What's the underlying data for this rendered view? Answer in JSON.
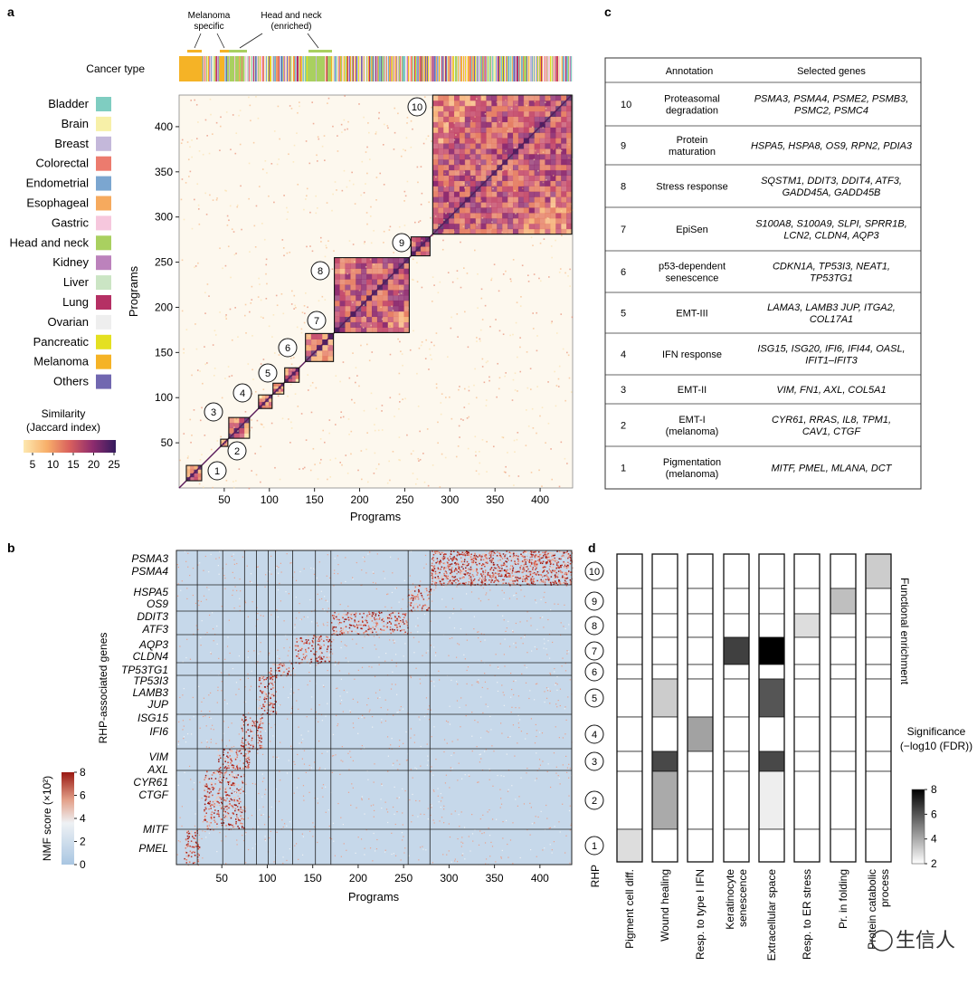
{
  "panel_letters": {
    "a": "a",
    "b": "b",
    "c": "c",
    "d": "d"
  },
  "panel_a": {
    "cancer_type_label": "Cancer type",
    "top_annotations": [
      "Melanoma\nspecific",
      "Head and neck\n(enriched)"
    ],
    "legend_items": [
      {
        "label": "Bladder",
        "color": "#7fcdc1"
      },
      {
        "label": "Brain",
        "color": "#f7f0a8"
      },
      {
        "label": "Breast",
        "color": "#c4b8da"
      },
      {
        "label": "Colorectal",
        "color": "#ec7b6e"
      },
      {
        "label": "Endometrial",
        "color": "#7ba6d0"
      },
      {
        "label": "Esophageal",
        "color": "#f6aa5e"
      },
      {
        "label": "Gastric",
        "color": "#f6c7dd"
      },
      {
        "label": "Head and neck",
        "color": "#a9d060"
      },
      {
        "label": "Kidney",
        "color": "#bc82bc"
      },
      {
        "label": "Liver",
        "color": "#cbe5c4"
      },
      {
        "label": "Lung",
        "color": "#b53064"
      },
      {
        "label": "Ovarian",
        "color": "#eeeeee"
      },
      {
        "label": "Pancreatic",
        "color": "#e4e021"
      },
      {
        "label": "Melanoma",
        "color": "#f5b326"
      },
      {
        "label": "Others",
        "color": "#7167b0"
      }
    ],
    "colorbar_title": "Similarity\n(Jaccard index)",
    "colorbar_ticks": [
      "5",
      "10",
      "15",
      "20",
      "25"
    ],
    "xlabel": "Programs",
    "ylabel": "Programs",
    "x_ticks": [
      "50",
      "100",
      "150",
      "200",
      "250",
      "300",
      "350",
      "400"
    ],
    "y_ticks": [
      "50",
      "100",
      "150",
      "200",
      "250",
      "300",
      "350",
      "400"
    ],
    "rhp_labels": [
      "1",
      "2",
      "3",
      "4",
      "5",
      "6",
      "7",
      "8",
      "9",
      "10"
    ]
  },
  "panel_b": {
    "ylabel": "RHP-associated genes",
    "xlabel": "Programs",
    "x_ticks": [
      "50",
      "100",
      "150",
      "200",
      "250",
      "300",
      "350",
      "400"
    ],
    "gene_labels": [
      "PSMA3",
      "PSMA4",
      "HSPA5",
      "OS9",
      "DDIT3",
      "ATF3",
      "AQP3",
      "CLDN4",
      "TP53TG1",
      "TP53I3",
      "LAMB3",
      "JUP",
      "ISG15",
      "IFI6",
      "VIM",
      "AXL",
      "CYR61",
      "CTGF",
      "MITF",
      "PMEL"
    ],
    "colorbar_title": "NMF score (×10²)",
    "colorbar_ticks": [
      "0",
      "2",
      "4",
      "6",
      "8"
    ]
  },
  "panel_c": {
    "header_annotation": "Annotation",
    "header_genes": "Selected genes",
    "rows": [
      {
        "rhp": "10",
        "annotation": "Proteasomal\ndegradation",
        "genes": "PSMA3, PSMA4, PSME2, PSMB3,\nPSMC2, PSMC4"
      },
      {
        "rhp": "9",
        "annotation": "Protein\nmaturation",
        "genes": "HSPA5, HSPA8, OS9, RPN2, PDIA3"
      },
      {
        "rhp": "8",
        "annotation": "Stress response",
        "genes": "SQSTM1, DDIT3, DDIT4, ATF3,\nGADD45A, GADD45B"
      },
      {
        "rhp": "7",
        "annotation": "EpiSen",
        "genes": "S100A8, S100A9, SLPI, SPRR1B,\nLCN2, CLDN4, AQP3"
      },
      {
        "rhp": "6",
        "annotation": "p53-dependent\nsenescence",
        "genes": "CDKN1A, TP53I3, NEAT1,\nTP53TG1"
      },
      {
        "rhp": "5",
        "annotation": "EMT-III",
        "genes": "LAMA3, LAMB3 JUP, ITGA2,\nCOL17A1"
      },
      {
        "rhp": "4",
        "annotation": "IFN response",
        "genes": "ISG15, ISG20, IFI6, IFI44, OASL,\nIFIT1–IFIT3"
      },
      {
        "rhp": "3",
        "annotation": "EMT-II",
        "genes": "VIM, FN1, AXL, COL5A1"
      },
      {
        "rhp": "2",
        "annotation": "EMT-I\n(melanoma)",
        "genes": "CYR61, RRAS, IL8, TPM1,\nCAV1, CTGF"
      },
      {
        "rhp": "1",
        "annotation": "Pigmentation\n(melanoma)",
        "genes": "MITF, PMEL, MLANA, DCT"
      }
    ]
  },
  "panel_d": {
    "rhp_axis_label": "RHP",
    "rhp_labels": [
      "10",
      "9",
      "8",
      "7",
      "6",
      "5",
      "4",
      "3",
      "2",
      "1"
    ],
    "columns": [
      "Pigment cell diff.",
      "Wound healing",
      "Resp. to type I IFN",
      "Keratinocyte\nsenescence",
      "Extracellular space",
      "Resp. to ER stress",
      "Pr. in folding",
      "Protein catabolic\nprocess"
    ],
    "side_label": "Functional enrichment",
    "colorbar_title": "Significance\n(−log10 (FDR))",
    "colorbar_ticks": [
      "2",
      "4",
      "6",
      "8"
    ],
    "significance": [
      [
        2,
        2,
        2,
        2,
        2,
        2,
        2,
        3.2
      ],
      [
        2,
        2,
        2,
        2,
        2,
        2,
        3.5,
        2
      ],
      [
        2,
        2,
        2,
        2,
        2,
        2.8,
        2,
        2
      ],
      [
        2,
        2,
        2,
        6.5,
        8,
        2,
        2,
        2
      ],
      [
        2,
        2,
        2,
        2,
        2,
        2,
        2,
        2
      ],
      [
        2,
        3.2,
        2,
        2,
        6.0,
        2,
        2,
        2
      ],
      [
        2,
        2,
        4.2,
        2,
        2,
        2,
        2,
        2
      ],
      [
        2,
        6.3,
        2,
        2,
        6.3,
        2,
        2,
        2
      ],
      [
        2,
        4.0,
        2,
        2,
        2.4,
        2,
        2,
        2
      ],
      [
        2.8,
        2,
        2,
        2,
        2,
        2,
        2,
        2
      ]
    ]
  },
  "watermark": "生信人"
}
